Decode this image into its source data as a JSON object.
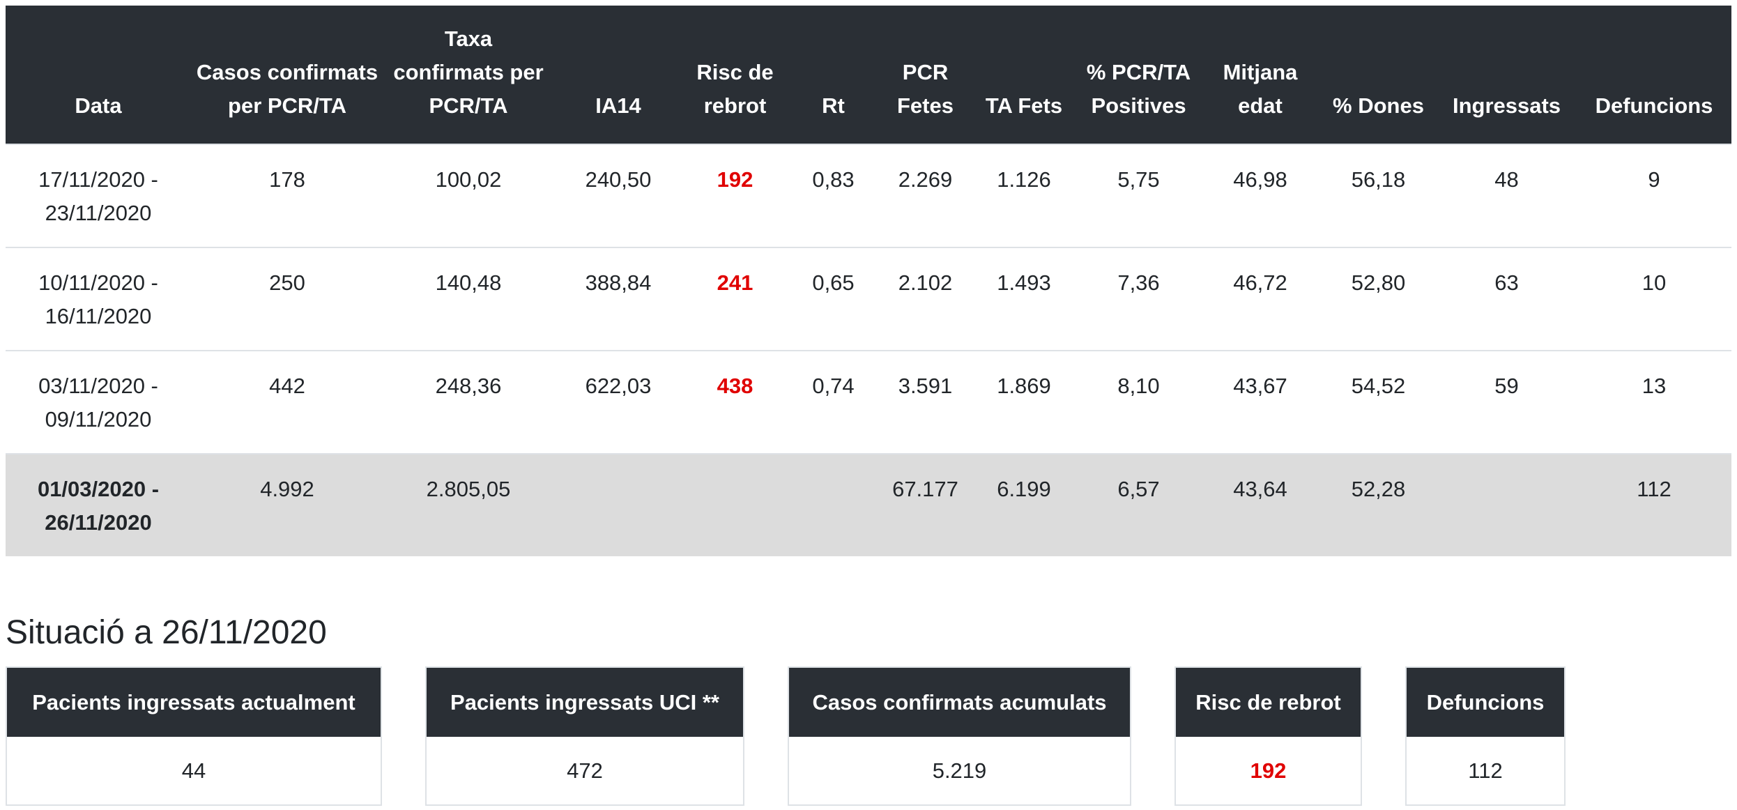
{
  "table": {
    "headers": [
      "Data",
      "Casos confirmats per PCR/TA",
      "Taxa confirmats per PCR/TA",
      "IA14",
      "Risc de rebrot",
      "Rt",
      "PCR Fetes",
      "TA Fets",
      "% PCR/TA Positives",
      "Mitjana edat",
      "% Dones",
      "Ingressats",
      "Defuncions"
    ],
    "rows": [
      [
        "17/11/2020 - 23/11/2020",
        "178",
        "100,02",
        "240,50",
        "192",
        "0,83",
        "2.269",
        "1.126",
        "5,75",
        "46,98",
        "56,18",
        "48",
        "9"
      ],
      [
        "10/11/2020 - 16/11/2020",
        "250",
        "140,48",
        "388,84",
        "241",
        "0,65",
        "2.102",
        "1.493",
        "7,36",
        "46,72",
        "52,80",
        "63",
        "10"
      ],
      [
        "03/11/2020 - 09/11/2020",
        "442",
        "248,36",
        "622,03",
        "438",
        "0,74",
        "3.591",
        "1.869",
        "8,10",
        "43,67",
        "54,52",
        "59",
        "13"
      ],
      [
        "01/03/2020 - 26/11/2020",
        "4.992",
        "2.805,05",
        null,
        null,
        null,
        "67.177",
        "6.199",
        "6,57",
        "43,64",
        "52,28",
        null,
        "112"
      ]
    ]
  },
  "summary": {
    "title": "Situació a 26/11/2020",
    "cards": [
      {
        "label": "Pacients ingressats actualment",
        "value": "44"
      },
      {
        "label": "Pacients ingressats UCI **",
        "value": "472"
      },
      {
        "label": "Casos confirmats acumulats",
        "value": "5.219"
      },
      {
        "label": "Risc de rebrot",
        "value": "192"
      },
      {
        "label": "Defuncions",
        "value": "112"
      }
    ]
  }
}
